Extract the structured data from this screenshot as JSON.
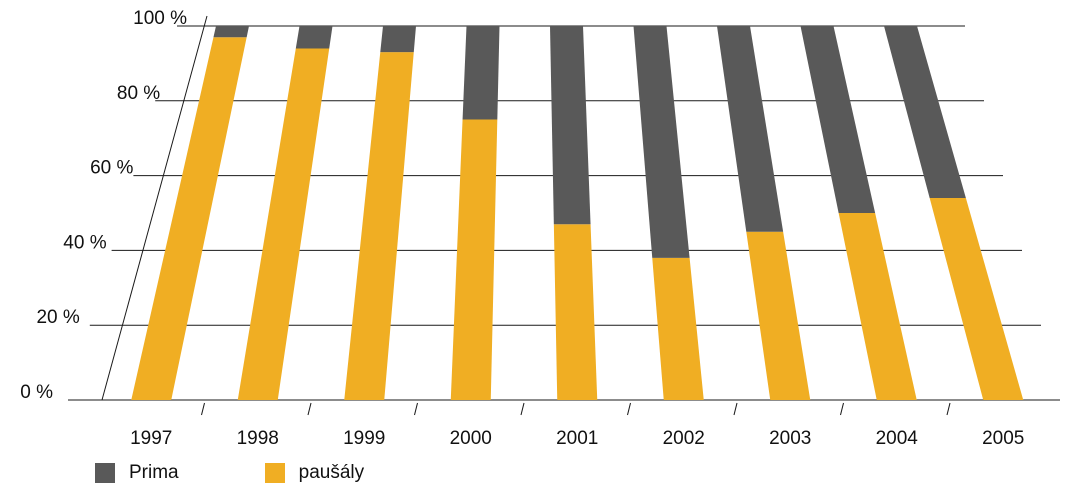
{
  "chart_data": {
    "type": "bar",
    "stacked": true,
    "percent": true,
    "categories": [
      "1997",
      "1998",
      "1999",
      "2000",
      "2001",
      "2002",
      "2003",
      "2004",
      "2005"
    ],
    "series": [
      {
        "name": "paušály",
        "color": "#f0ae23",
        "values": [
          97,
          94,
          93,
          75,
          47,
          38,
          45,
          50,
          54
        ]
      },
      {
        "name": "Prima",
        "color": "#595959",
        "values": [
          3,
          6,
          7,
          25,
          53,
          62,
          55,
          50,
          46
        ]
      }
    ],
    "yticks": [
      "0 %",
      "20 %",
      "40 %",
      "60 %",
      "80 %",
      "100 %"
    ],
    "ylim": [
      0,
      100
    ],
    "grid": true,
    "legend_position": "bottom-left"
  },
  "legend": {
    "items": [
      {
        "label": "Prima",
        "color": "#595959"
      },
      {
        "label": "paušály",
        "color": "#f0ae23"
      }
    ]
  }
}
